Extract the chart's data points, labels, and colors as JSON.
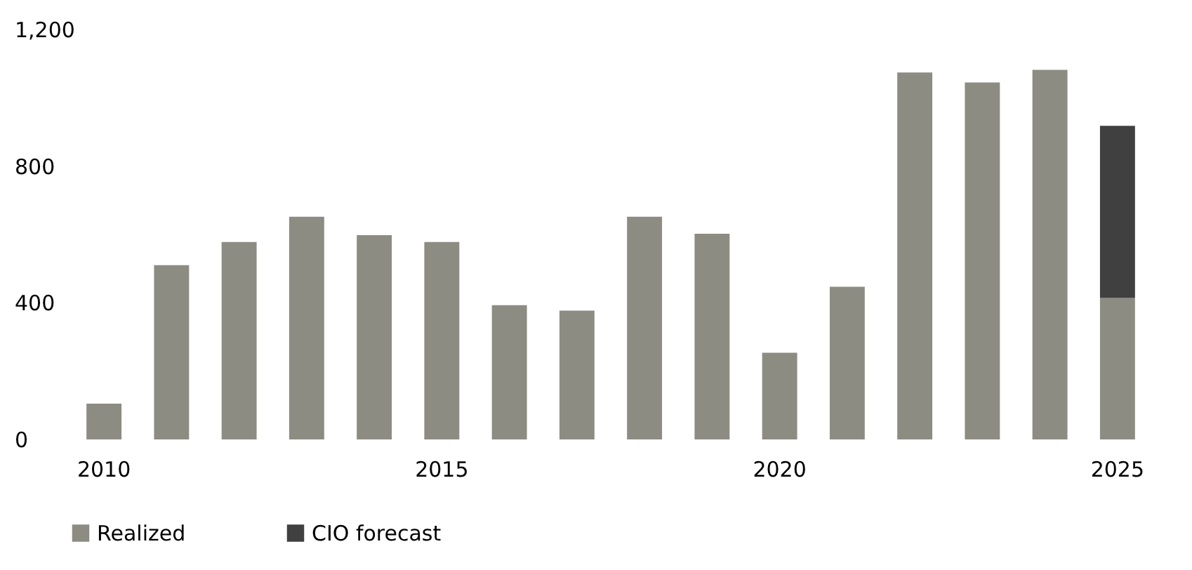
{
  "chart_data": {
    "type": "bar",
    "stacked": true,
    "categories": [
      "2010",
      null,
      null,
      null,
      null,
      "2015",
      null,
      null,
      null,
      null,
      "2020",
      null,
      null,
      null,
      null,
      "2025"
    ],
    "series": [
      {
        "name": "Realized",
        "color": "#8c8c82",
        "values": [
          105,
          510,
          578,
          652,
          598,
          578,
          393,
          377,
          652,
          602,
          254,
          447,
          1074,
          1045,
          1082,
          414
        ]
      },
      {
        "name": "CIO forecast",
        "color": "#404040",
        "values": [
          null,
          null,
          null,
          null,
          null,
          null,
          null,
          null,
          null,
          null,
          null,
          null,
          null,
          null,
          null,
          504
        ]
      }
    ],
    "ylim": [
      0,
      1200
    ],
    "yticks": [
      0,
      400,
      800,
      {
        "value": 1200,
        "label": "1,200"
      }
    ],
    "grid": false,
    "legend": "bottom left"
  }
}
